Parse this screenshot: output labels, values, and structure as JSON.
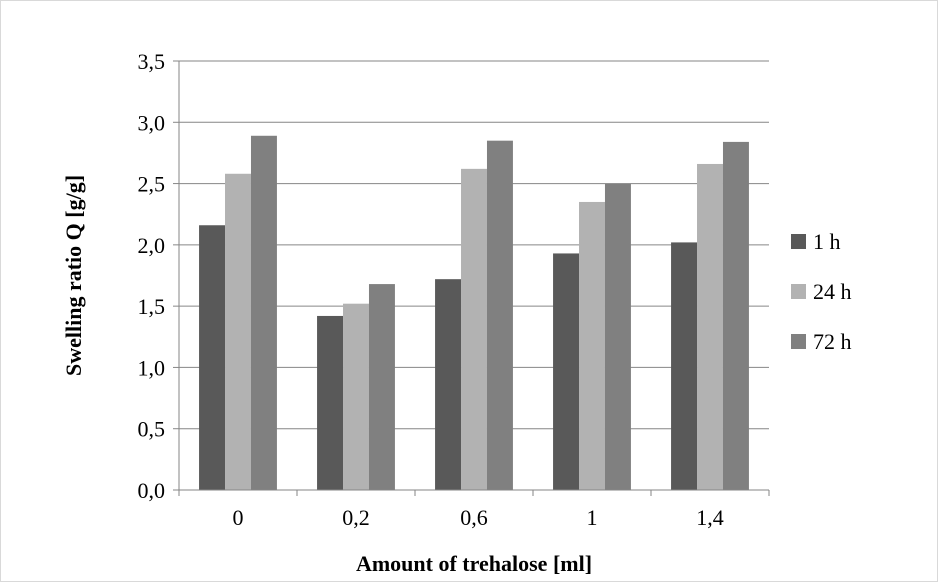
{
  "chart_data": {
    "type": "bar",
    "title": "",
    "xlabel": "Amount of trehalose [ml]",
    "ylabel": "Swelling ratio Q [g/g]",
    "categories": [
      "0",
      "0,2",
      "0,6",
      "1",
      "1,4"
    ],
    "ylim": [
      0,
      3.5
    ],
    "yticks": [
      0,
      0.5,
      1.0,
      1.5,
      2.0,
      2.5,
      3.0,
      3.5
    ],
    "ytick_labels": [
      "0,0",
      "0,5",
      "1,0",
      "1,5",
      "2,0",
      "2,5",
      "3,0",
      "3,5"
    ],
    "grid": true,
    "legend_position": "right",
    "series": [
      {
        "name": "1 h",
        "color": "#595959",
        "values": [
          2.16,
          1.42,
          1.72,
          1.93,
          2.02
        ]
      },
      {
        "name": "24 h",
        "color": "#b2b2b2",
        "values": [
          2.58,
          1.52,
          2.62,
          2.35,
          2.66
        ]
      },
      {
        "name": "72 h",
        "color": "#808080",
        "values": [
          2.89,
          1.68,
          2.85,
          2.5,
          2.84
        ]
      }
    ]
  }
}
